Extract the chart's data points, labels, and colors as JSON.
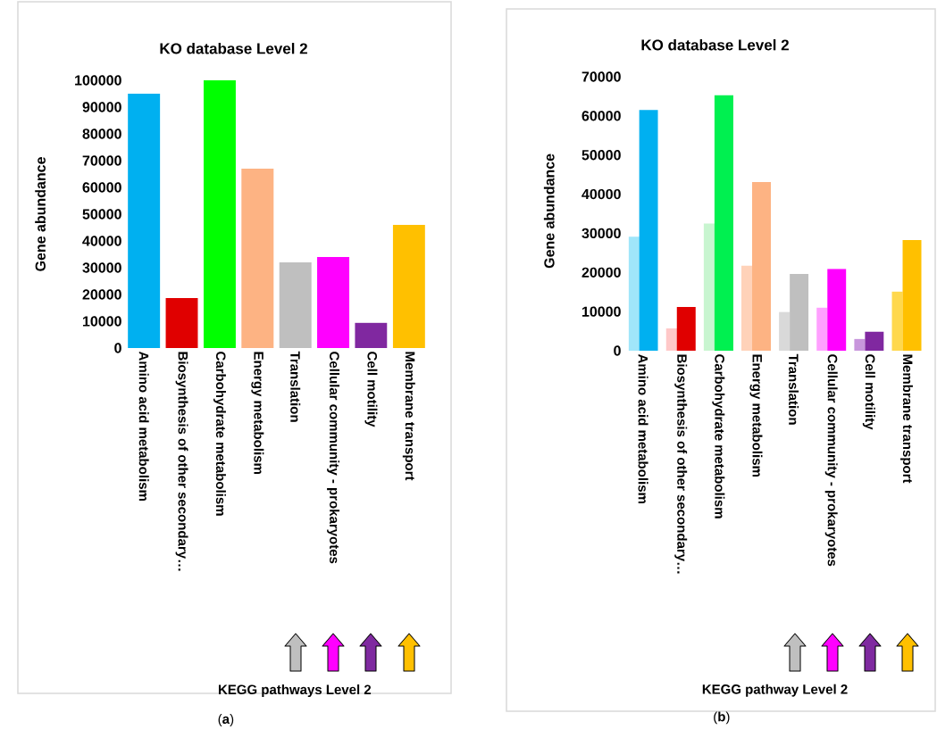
{
  "chart_data": [
    {
      "type": "bar",
      "title": "KO database Level 2",
      "xlabel": "KEGG pathways Level 2",
      "ylabel": "Gene abundance",
      "categories": [
        "Amino acid metabolism",
        "Biosynthesis of other secondary…",
        "Carbohydrate metabolism",
        "Energy metabolism",
        "Translation",
        "Cellular community - prokaryotes",
        "Cell motility",
        "Membrane transport"
      ],
      "values": [
        95000,
        18700,
        100000,
        67000,
        32000,
        34000,
        9400,
        46000
      ],
      "colors": [
        "#00b0f0",
        "#e00000",
        "#00ff00",
        "#fdb383",
        "#bfbfbf",
        "#ff00ff",
        "#8028a0",
        "#ffc000"
      ],
      "ylim": [
        0,
        100000
      ],
      "yticks": [
        0,
        10000,
        20000,
        30000,
        40000,
        50000,
        60000,
        70000,
        80000,
        90000,
        100000
      ],
      "annotations": [
        "(**a**)"
      ]
    },
    {
      "type": "bar",
      "title": "KO database Level 2",
      "xlabel": "KEGG pathway Level 2",
      "ylabel": "Gene abundance",
      "categories": [
        "Amino acid metabolism",
        "Biosynthesis of other secondary…",
        "Carbohydrate metabolism",
        "Energy metabolism",
        "Translation",
        "Cellular community - prokaryotes",
        "Cell motility",
        "Membrane transport"
      ],
      "series": [
        {
          "values": [
            29100,
            5700,
            32500,
            21700,
            9900,
            11000,
            3000,
            15100
          ],
          "colors": [
            "#a0e6fa",
            "#ffc8c8",
            "#c8f5d0",
            "#ffd2b9",
            "#d9d9d9",
            "#ffa0ff",
            "#c896dc",
            "#ffd84d"
          ]
        },
        {
          "values": [
            61500,
            11200,
            65300,
            43100,
            19600,
            20900,
            4900,
            28300
          ],
          "colors": [
            "#00b0f0",
            "#e00000",
            "#00f050",
            "#fdb383",
            "#bfbfbf",
            "#ff00ff",
            "#8028a0",
            "#ffc000"
          ]
        }
      ],
      "ylim": [
        0,
        70000
      ],
      "yticks": [
        0,
        10000,
        20000,
        30000,
        40000,
        50000,
        60000,
        70000
      ],
      "annotations": [
        "(**b**)"
      ]
    }
  ]
}
